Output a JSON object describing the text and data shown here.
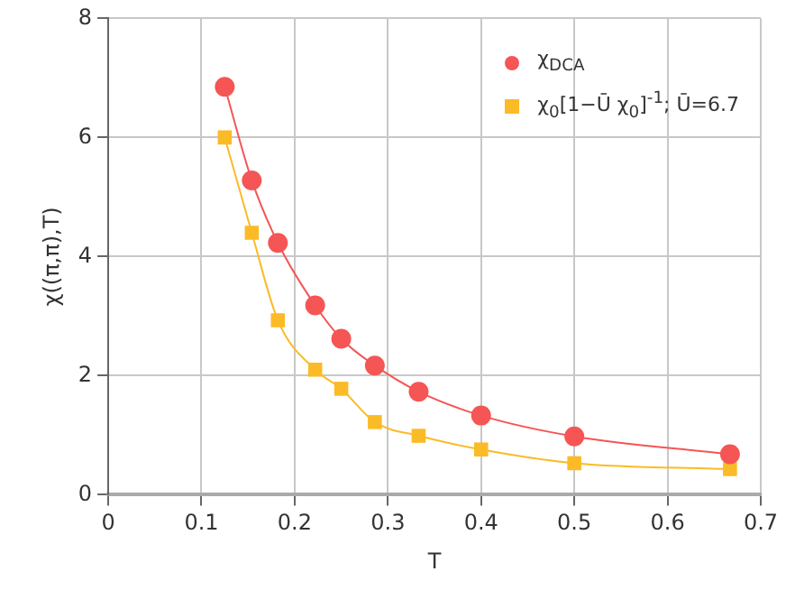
{
  "chart_data": {
    "type": "line",
    "xlabel": "T",
    "ylabel": "χ((π,π),T)",
    "xlim": [
      0,
      0.7
    ],
    "xticks": [
      0,
      0.1,
      0.2,
      0.3,
      0.4,
      0.5,
      0.6,
      0.7
    ],
    "ylim": [
      0,
      8
    ],
    "yticks": [
      0,
      2,
      4,
      6,
      8
    ],
    "grid": true,
    "legend": "top right",
    "line_style": "solid",
    "series": [
      {
        "name": "χ$_{DCA}$",
        "color": "#f55555",
        "marker": "circle",
        "x": [
          0.125,
          0.154,
          0.182,
          0.222,
          0.25,
          0.286,
          0.333,
          0.4,
          0.5,
          0.667
        ],
        "values": [
          6.85,
          5.28,
          4.23,
          3.18,
          2.62,
          2.17,
          1.73,
          1.33,
          0.98,
          0.68
        ]
      },
      {
        "name": "χ$_{0}$[1−Ū χ$_{0}$]$^{-1}$; Ū=6.7",
        "color": "#fbbb26",
        "marker": "square",
        "x": [
          0.125,
          0.154,
          0.182,
          0.222,
          0.25,
          0.286,
          0.333,
          0.4,
          0.5,
          0.667
        ],
        "values": [
          6.0,
          4.4,
          2.93,
          2.1,
          1.78,
          1.22,
          0.99,
          0.76,
          0.53,
          0.43
        ]
      }
    ]
  }
}
